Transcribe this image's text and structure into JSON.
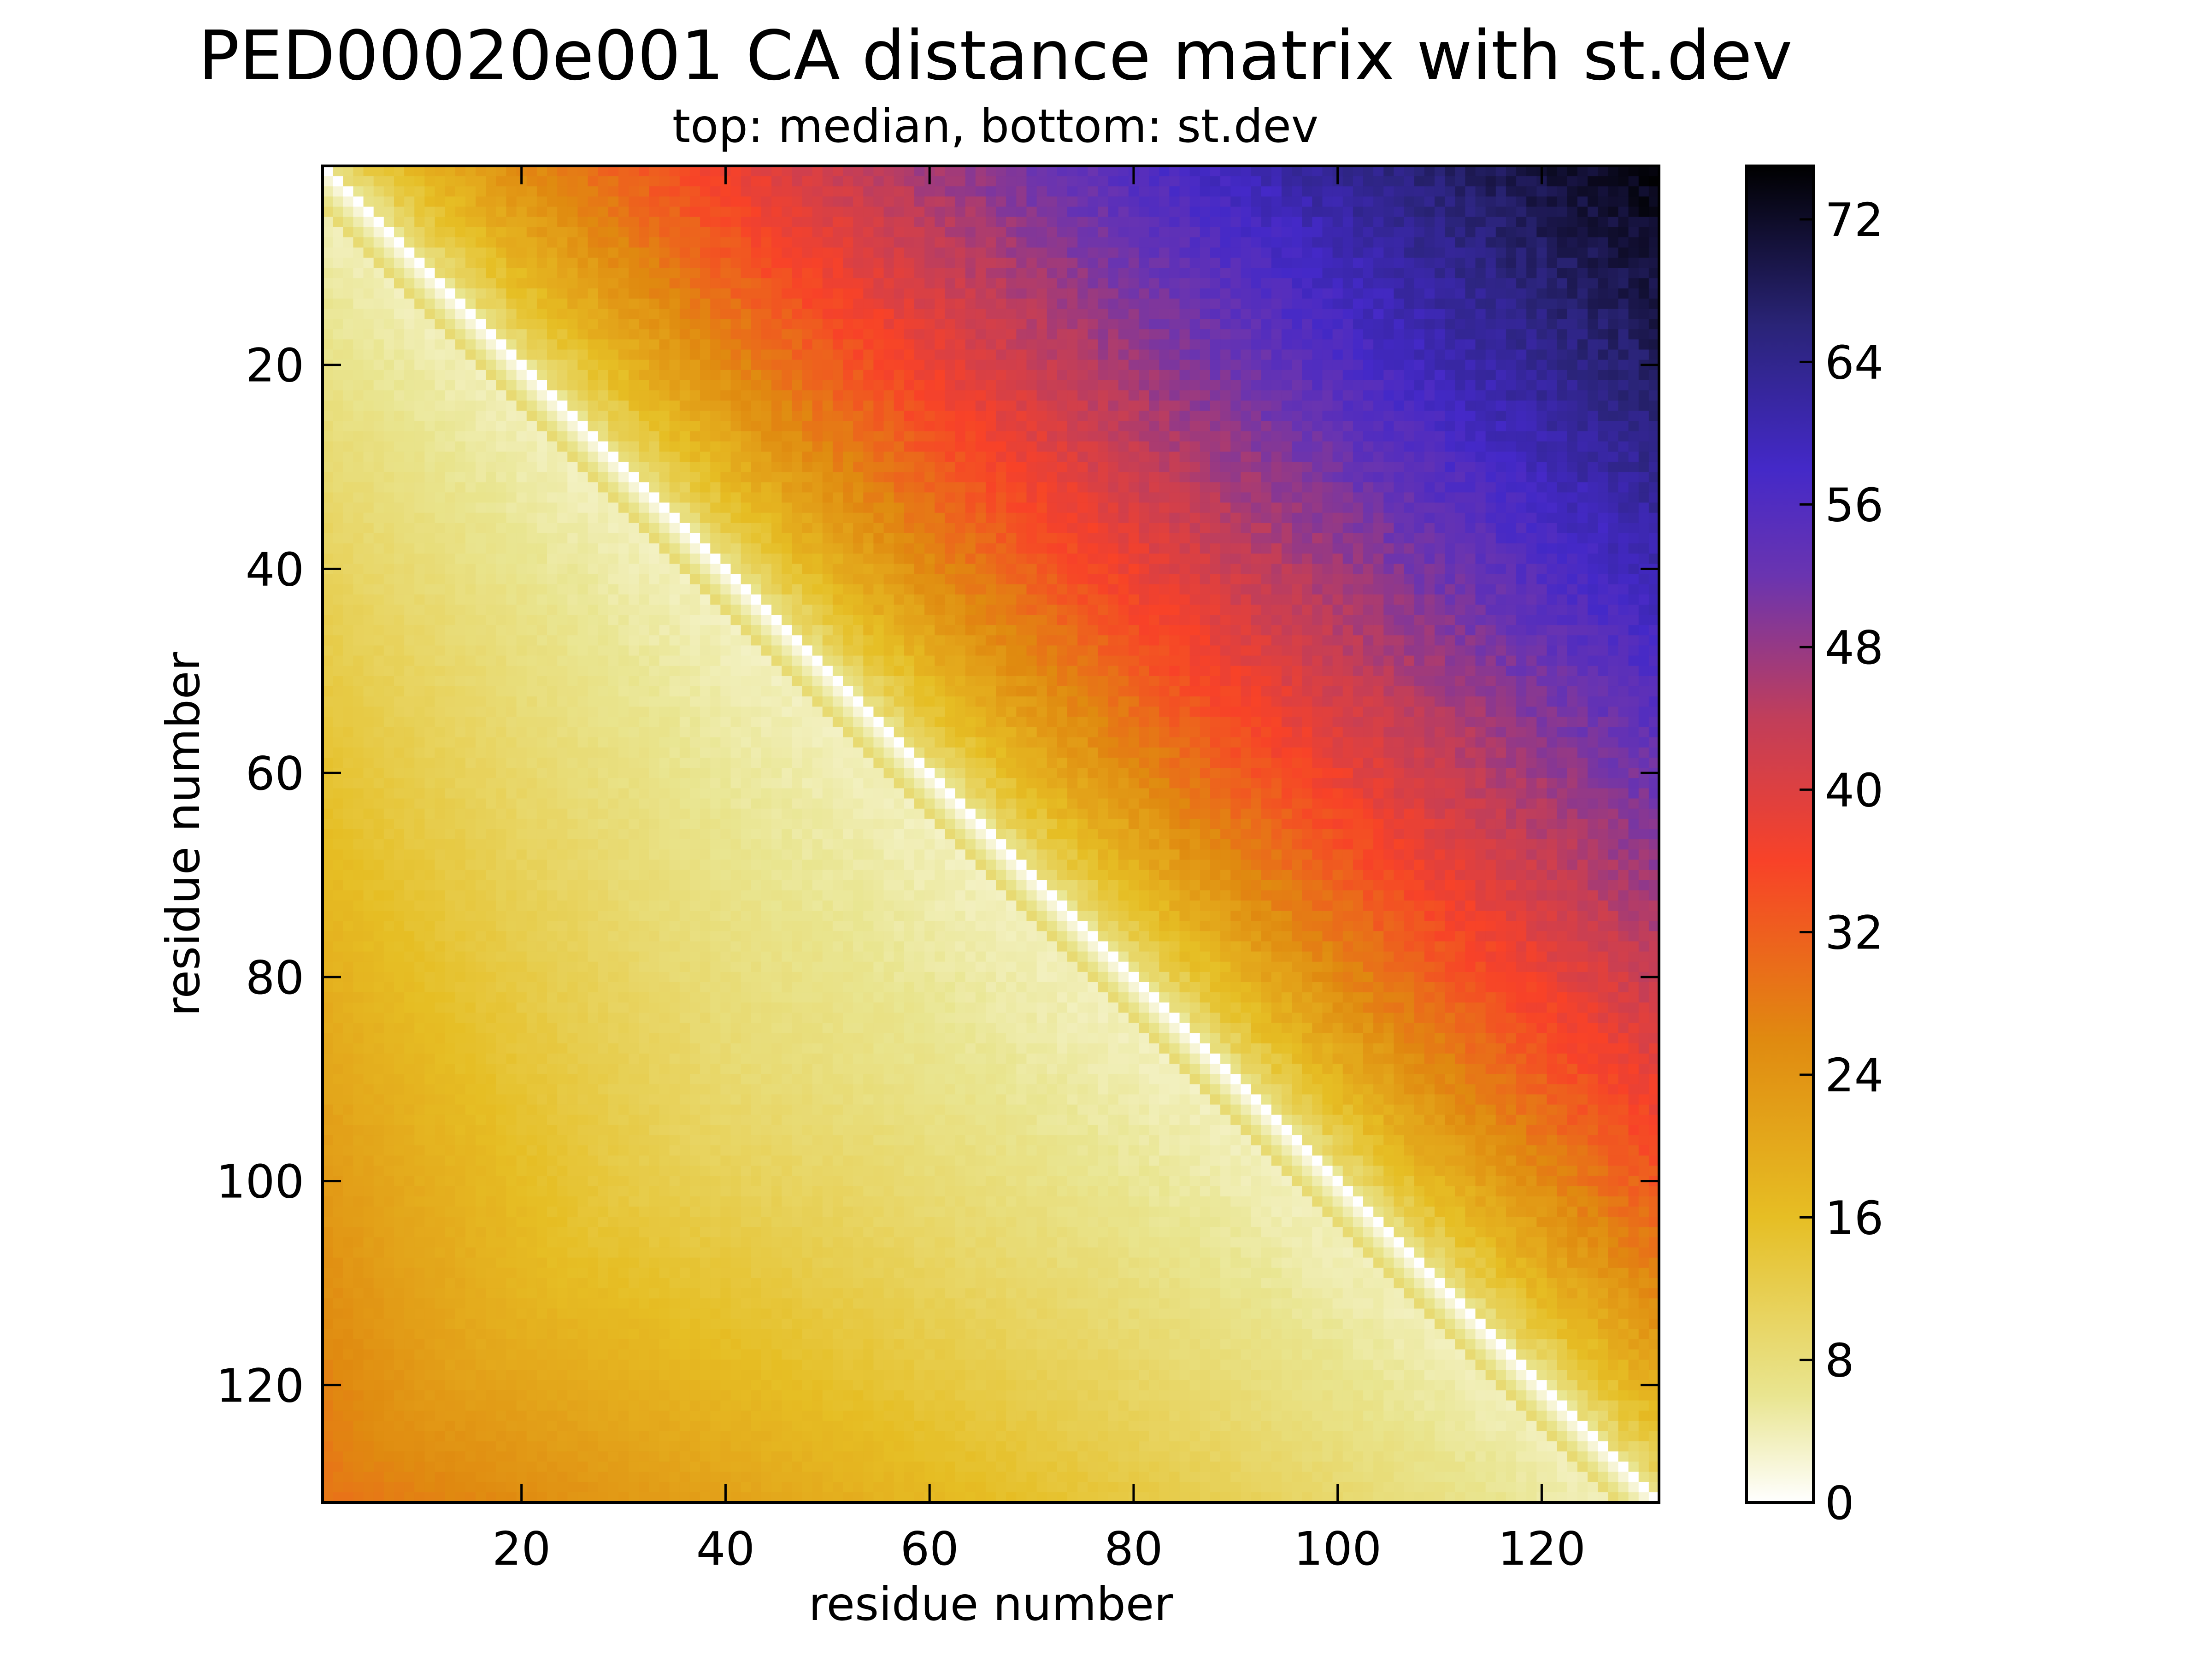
{
  "chart_data": {
    "type": "heatmap",
    "title": "PED00020e001 CA distance matrix with st.dev",
    "subtitle": "top: median,  bottom: st.dev",
    "xlabel": "residue number",
    "ylabel": "residue number",
    "xlim": [
      0.5,
      131.5
    ],
    "ylim": [
      131.5,
      0.5
    ],
    "n_residues": 131,
    "x_ticks": [
      20,
      40,
      60,
      80,
      100,
      120
    ],
    "y_ticks": [
      20,
      40,
      60,
      80,
      100,
      120
    ],
    "x_tick_labels": [
      "20",
      "40",
      "60",
      "80",
      "100",
      "120"
    ],
    "y_tick_labels": [
      "20",
      "40",
      "60",
      "80",
      "100",
      "120"
    ],
    "upper_triangle": "median CA distance",
    "lower_triangle": "st.dev of CA distance",
    "approx_values": {
      "median_near_diagonal": 3.8,
      "median_max_corner": 74,
      "stdev_near_diagonal": 0,
      "stdev_max_corner": 29
    },
    "colorbar": {
      "min": 0,
      "max": 75,
      "ticks": [
        0,
        8,
        16,
        24,
        32,
        40,
        48,
        56,
        64,
        72
      ],
      "tick_labels": [
        "0",
        "8",
        "16",
        "24",
        "32",
        "40",
        "48",
        "56",
        "64",
        "72"
      ],
      "colormap": "gnuplot2_r-like",
      "color_stops": [
        [
          0,
          "#ffffff"
        ],
        [
          6,
          "#e9e590"
        ],
        [
          16,
          "#e6be24"
        ],
        [
          26,
          "#e08a10"
        ],
        [
          36,
          "#f84228"
        ],
        [
          44,
          "#c13e5a"
        ],
        [
          52,
          "#6a34b0"
        ],
        [
          58,
          "#4429c8"
        ],
        [
          66,
          "#2a2478"
        ],
        [
          75,
          "#000000"
        ]
      ]
    },
    "grid": false,
    "legend": "none"
  }
}
